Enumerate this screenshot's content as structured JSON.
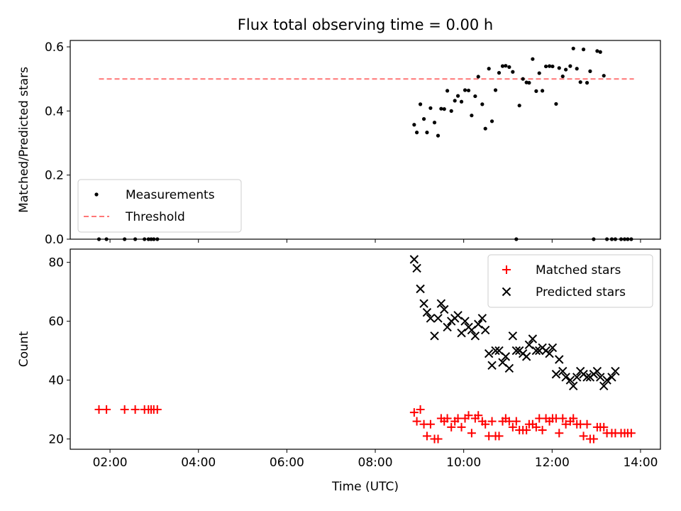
{
  "chart_data": [
    {
      "type": "scatter",
      "title": "Flux total observing time = 0.00 h",
      "xlabel": "",
      "ylabel": "Matched/Predicted stars",
      "xlim": [
        1.1,
        14.45
      ],
      "ylim": [
        0.0,
        0.62
      ],
      "yticks": [
        0.0,
        0.2,
        0.4,
        0.6
      ],
      "ytick_labels": [
        "0.0",
        "0.2",
        "0.4",
        "0.6"
      ],
      "xticks": [
        2,
        4,
        6,
        8,
        10,
        12,
        14
      ],
      "xtick_labels": [
        "",
        "",
        "",
        "",
        "",
        "",
        ""
      ],
      "grid": false,
      "legend_position": "lower-left",
      "threshold": {
        "name": "Threshold",
        "y": 0.5,
        "x_range": [
          1.75,
          13.85
        ],
        "color": "#ff7777"
      },
      "series": [
        {
          "name": "Measurements",
          "marker": "dot",
          "color": "#000000",
          "x": [
            1.75,
            1.92,
            2.33,
            2.57,
            2.78,
            2.87,
            2.93,
            2.99,
            3.07,
            8.88,
            8.94,
            9.02,
            9.1,
            9.17,
            9.25,
            9.34,
            9.42,
            9.49,
            9.56,
            9.63,
            9.72,
            9.8,
            9.87,
            9.95,
            10.03,
            10.11,
            10.18,
            10.26,
            10.33,
            10.42,
            10.49,
            10.57,
            10.64,
            10.72,
            10.8,
            10.88,
            10.95,
            11.03,
            11.11,
            11.19,
            11.26,
            11.34,
            11.42,
            11.48,
            11.56,
            11.64,
            11.71,
            11.78,
            11.86,
            11.94,
            12.01,
            12.09,
            12.16,
            12.24,
            12.31,
            12.41,
            12.48,
            12.56,
            12.64,
            12.71,
            12.79,
            12.86,
            12.94,
            13.02,
            13.09,
            13.17,
            13.24,
            13.35,
            13.43,
            13.56,
            13.64,
            13.71,
            13.79
          ],
          "y": [
            0.0,
            0.0,
            0.0,
            0.0,
            0.0,
            0.0,
            0.0,
            0.0,
            0.0,
            0.357,
            0.333,
            0.421,
            0.375,
            0.333,
            0.409,
            0.364,
            0.323,
            0.407,
            0.406,
            0.463,
            0.4,
            0.432,
            0.447,
            0.429,
            0.465,
            0.464,
            0.386,
            0.446,
            0.507,
            0.421,
            0.345,
            0.532,
            0.368,
            0.465,
            0.519,
            0.54,
            0.541,
            0.537,
            0.522,
            0.0,
            0.417,
            0.5,
            0.489,
            0.488,
            0.562,
            0.462,
            0.518,
            0.463,
            0.539,
            0.54,
            0.539,
            0.422,
            0.534,
            0.508,
            0.529,
            0.54,
            0.595,
            0.532,
            0.49,
            0.592,
            0.488,
            0.524,
            0.0,
            0.587,
            0.584,
            0.51,
            0.0,
            0.0,
            0.0,
            0.0,
            0.0,
            0.0,
            0.0
          ]
        }
      ]
    },
    {
      "type": "scatter",
      "title": "",
      "xlabel": "Time (UTC)",
      "ylabel": "Count",
      "xlim": [
        1.1,
        14.45
      ],
      "ylim": [
        16.5,
        84.5
      ],
      "yticks": [
        20,
        40,
        60,
        80
      ],
      "ytick_labels": [
        "20",
        "40",
        "60",
        "80"
      ],
      "xticks": [
        2,
        4,
        6,
        8,
        10,
        12,
        14
      ],
      "xtick_labels": [
        "02:00",
        "04:00",
        "06:00",
        "08:00",
        "10:00",
        "12:00",
        "14:00"
      ],
      "grid": false,
      "legend_position": "upper-right",
      "series": [
        {
          "name": "Matched stars",
          "marker": "plus",
          "color": "#ff0000",
          "x": [
            1.75,
            1.92,
            2.33,
            2.57,
            2.78,
            2.87,
            2.93,
            2.99,
            3.07,
            8.88,
            8.94,
            9.02,
            9.1,
            9.17,
            9.25,
            9.34,
            9.42,
            9.49,
            9.56,
            9.63,
            9.72,
            9.8,
            9.87,
            9.95,
            10.03,
            10.11,
            10.18,
            10.26,
            10.33,
            10.42,
            10.49,
            10.57,
            10.64,
            10.72,
            10.8,
            10.88,
            10.95,
            11.03,
            11.11,
            11.19,
            11.26,
            11.34,
            11.42,
            11.48,
            11.56,
            11.64,
            11.71,
            11.78,
            11.86,
            11.94,
            12.01,
            12.09,
            12.16,
            12.24,
            12.31,
            12.41,
            12.48,
            12.56,
            12.64,
            12.71,
            12.79,
            12.86,
            12.94,
            13.02,
            13.09,
            13.17,
            13.24,
            13.35,
            13.43,
            13.56,
            13.64,
            13.71,
            13.79
          ],
          "y": [
            30,
            30,
            30,
            30,
            30,
            30,
            30,
            30,
            30,
            29,
            26,
            30,
            25,
            21,
            25,
            20,
            20,
            27,
            26,
            27,
            24,
            26,
            27,
            24,
            27,
            28,
            22,
            27,
            28,
            26,
            25,
            21,
            26,
            21,
            21,
            26,
            27,
            26,
            24,
            26,
            23,
            23,
            23,
            25,
            25,
            24,
            27,
            23,
            27,
            26,
            27,
            27,
            22,
            27,
            25,
            26,
            27,
            25,
            25,
            21,
            25,
            20,
            20,
            24,
            24,
            24,
            22,
            22,
            22,
            22,
            22,
            22,
            22
          ]
        },
        {
          "name": "Predicted stars",
          "marker": "x",
          "color": "#000000",
          "x": [
            8.88,
            8.94,
            9.02,
            9.1,
            9.17,
            9.25,
            9.34,
            9.42,
            9.49,
            9.56,
            9.63,
            9.72,
            9.8,
            9.87,
            9.95,
            10.03,
            10.11,
            10.18,
            10.26,
            10.33,
            10.42,
            10.49,
            10.57,
            10.64,
            10.72,
            10.8,
            10.88,
            10.95,
            11.03,
            11.11,
            11.19,
            11.26,
            11.34,
            11.42,
            11.48,
            11.56,
            11.64,
            11.71,
            11.78,
            11.86,
            11.94,
            12.01,
            12.09,
            12.16,
            12.24,
            12.31,
            12.41,
            12.48,
            12.56,
            12.64,
            12.71,
            12.79,
            12.86,
            12.94,
            13.02,
            13.09,
            13.17,
            13.24,
            13.35,
            13.43
          ],
          "y": [
            81,
            78,
            71,
            66,
            63,
            61,
            55,
            61,
            66,
            64,
            58,
            60,
            61,
            62,
            56,
            60,
            58,
            57,
            55,
            59,
            61,
            57,
            49,
            45,
            50,
            50,
            46,
            48,
            44,
            55,
            50,
            50,
            49,
            48,
            52,
            54,
            50,
            50,
            51,
            50,
            49,
            51,
            42,
            47,
            43,
            41,
            40,
            38,
            41,
            43,
            42,
            41,
            41,
            42,
            43,
            41,
            38,
            40,
            41,
            43
          ]
        }
      ]
    }
  ]
}
